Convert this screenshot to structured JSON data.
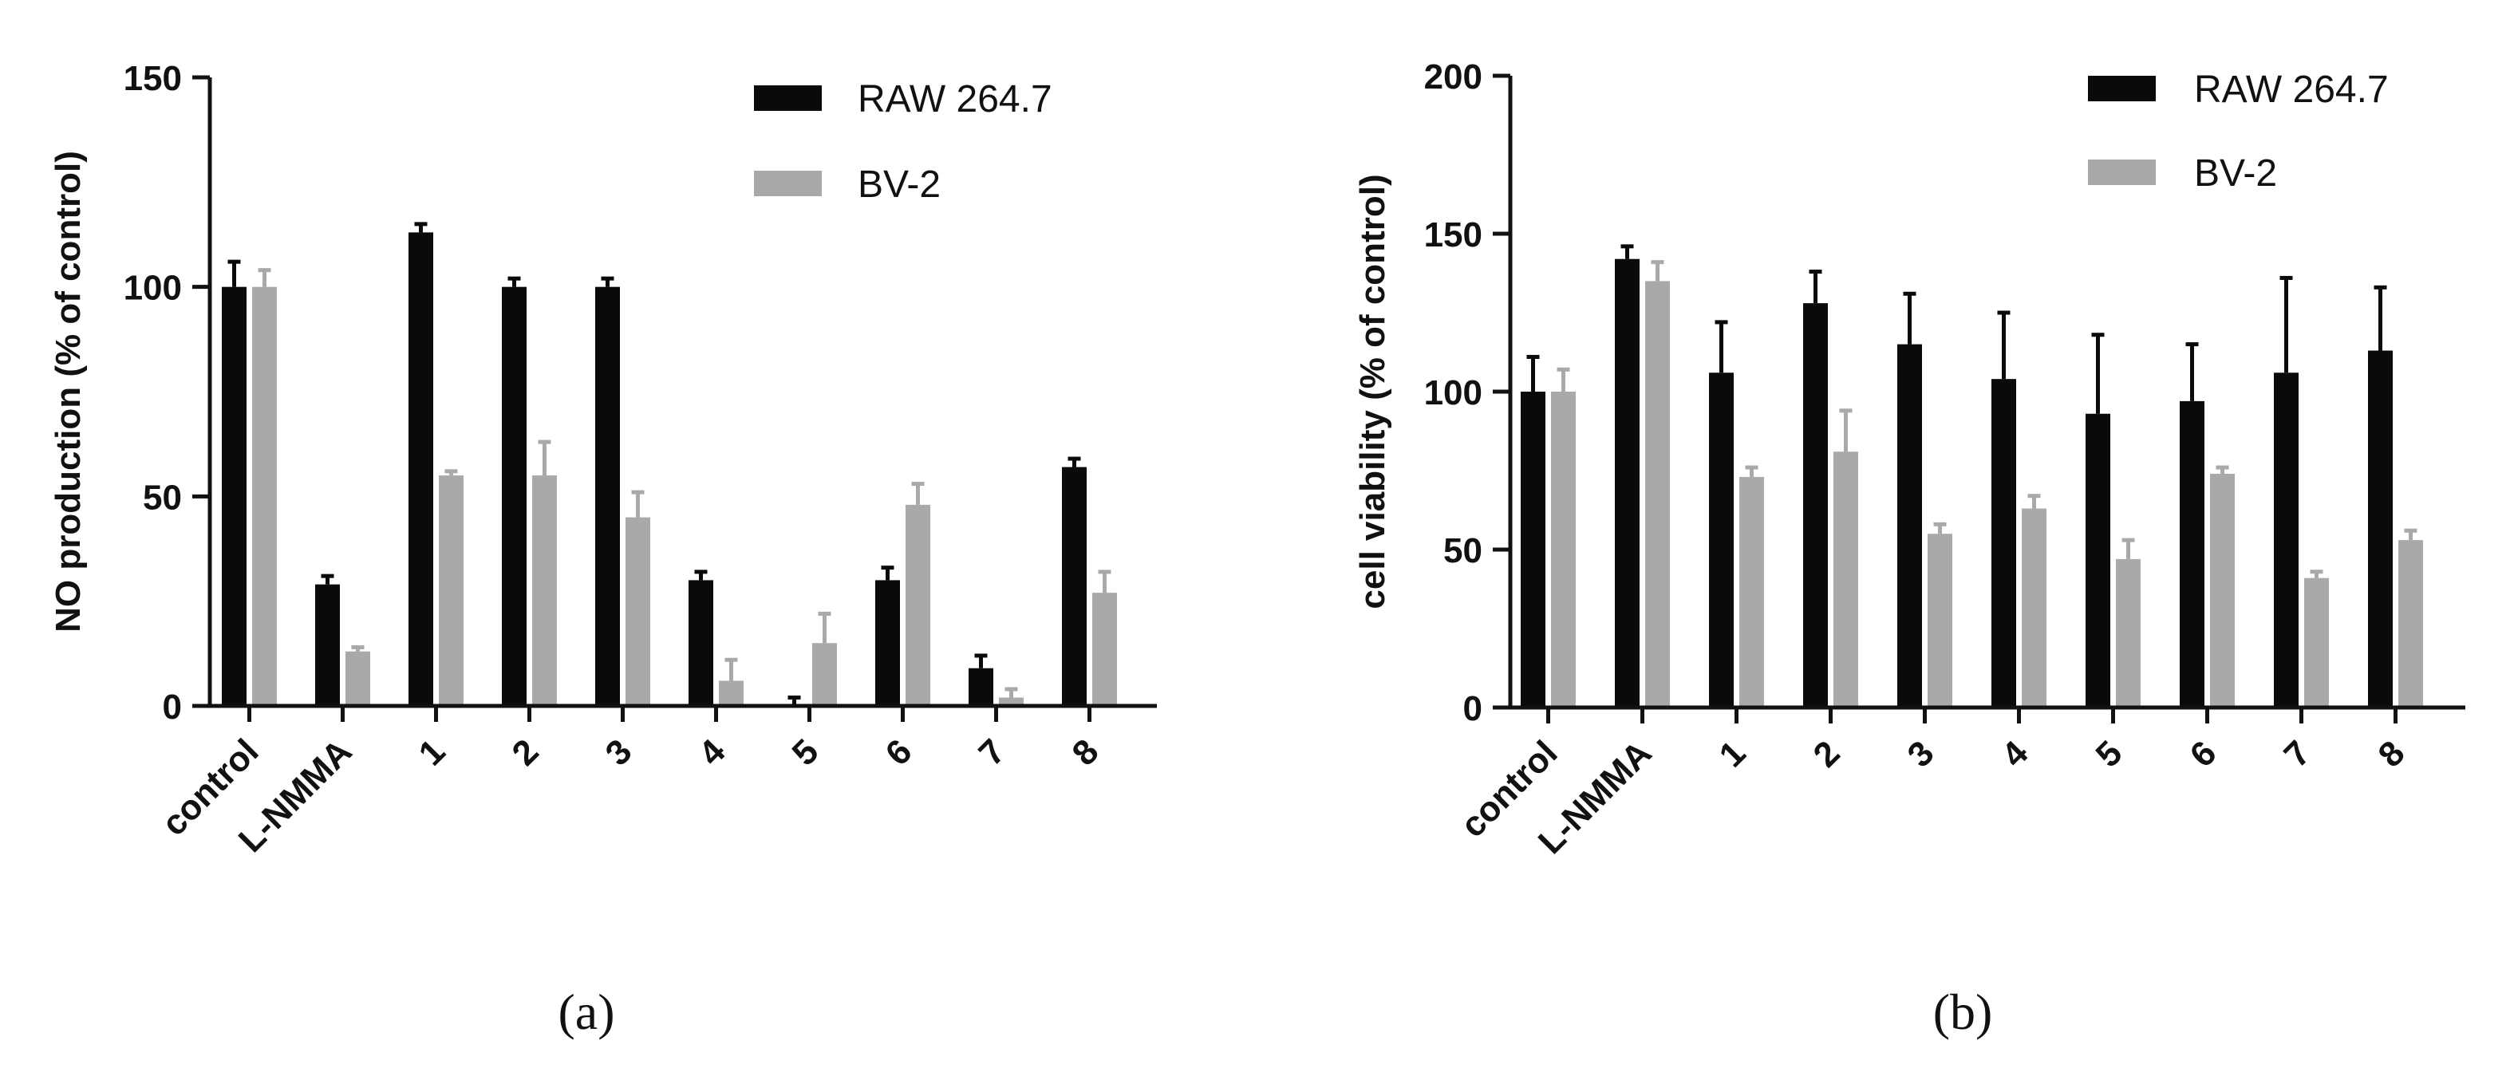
{
  "figure_labels": [
    "(a)",
    "(b)"
  ],
  "chart_data": [
    {
      "id": "a",
      "type": "bar",
      "panel_label": "a",
      "title": "",
      "xlabel": "",
      "ylabel": "NO production (% of control)",
      "ylim": [
        0,
        150
      ],
      "yticks": [
        0,
        50,
        100,
        150
      ],
      "categories": [
        "control",
        "L-NMMA",
        "1",
        "2",
        "3",
        "4",
        "5",
        "6",
        "7",
        "8"
      ],
      "legend": {
        "position": "top-right",
        "entries": [
          "RAW 264.7",
          "BV-2"
        ]
      },
      "colors": [
        "#0a0a0a",
        "#a9a9a9"
      ],
      "series": [
        {
          "name": "RAW 264.7",
          "values": [
            100,
            29,
            113,
            100,
            100,
            30,
            0,
            30,
            9,
            57
          ],
          "errors": [
            6,
            2,
            2,
            2,
            2,
            2,
            2,
            3,
            3,
            2
          ]
        },
        {
          "name": "BV-2",
          "values": [
            100,
            13,
            55,
            55,
            45,
            6,
            15,
            48,
            2,
            27
          ],
          "errors": [
            4,
            1,
            1,
            8,
            6,
            5,
            7,
            5,
            2,
            5
          ]
        }
      ]
    },
    {
      "id": "b",
      "type": "bar",
      "panel_label": "b",
      "title": "",
      "xlabel": "",
      "ylabel": "cell viability (% of control)",
      "ylim": [
        0,
        200
      ],
      "yticks": [
        0,
        50,
        100,
        150,
        200
      ],
      "categories": [
        "control",
        "L-NMMA",
        "1",
        "2",
        "3",
        "4",
        "5",
        "6",
        "7",
        "8"
      ],
      "legend": {
        "position": "top-right",
        "entries": [
          "RAW 264.7",
          "BV-2"
        ]
      },
      "colors": [
        "#0a0a0a",
        "#a9a9a9"
      ],
      "series": [
        {
          "name": "RAW 264.7",
          "values": [
            100,
            142,
            106,
            128,
            115,
            104,
            93,
            97,
            106,
            113
          ],
          "errors": [
            11,
            4,
            16,
            10,
            16,
            21,
            25,
            18,
            30,
            20
          ]
        },
        {
          "name": "BV-2",
          "values": [
            100,
            135,
            73,
            81,
            55,
            63,
            47,
            74,
            41,
            53
          ],
          "errors": [
            7,
            6,
            3,
            13,
            3,
            4,
            6,
            2,
            2,
            3
          ]
        }
      ]
    }
  ]
}
